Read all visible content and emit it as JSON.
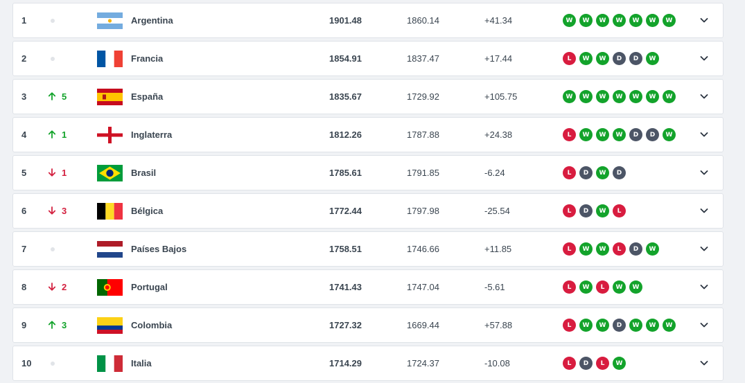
{
  "colors": {
    "win": "#13a32b",
    "loss": "#d81c3f",
    "draw": "#4c5566",
    "up": "#13a32b",
    "down": "#d3203f"
  },
  "rows": [
    {
      "rank": "1",
      "movement": {
        "dir": "none",
        "value": ""
      },
      "flag": "argentina-flag-icon",
      "country": "Argentina",
      "total_points": "1901.48",
      "previous_points": "1860.14",
      "difference": "+41.34",
      "form": [
        "W",
        "W",
        "W",
        "W",
        "W",
        "W",
        "W"
      ]
    },
    {
      "rank": "2",
      "movement": {
        "dir": "none",
        "value": ""
      },
      "flag": "france-flag-icon",
      "country": "Francia",
      "total_points": "1854.91",
      "previous_points": "1837.47",
      "difference": "+17.44",
      "form": [
        "L",
        "W",
        "W",
        "D",
        "D",
        "W"
      ]
    },
    {
      "rank": "3",
      "movement": {
        "dir": "up",
        "value": "5"
      },
      "flag": "spain-flag-icon",
      "country": "España",
      "total_points": "1835.67",
      "previous_points": "1729.92",
      "difference": "+105.75",
      "form": [
        "W",
        "W",
        "W",
        "W",
        "W",
        "W",
        "W"
      ]
    },
    {
      "rank": "4",
      "movement": {
        "dir": "up",
        "value": "1"
      },
      "flag": "england-flag-icon",
      "country": "Inglaterra",
      "total_points": "1812.26",
      "previous_points": "1787.88",
      "difference": "+24.38",
      "form": [
        "L",
        "W",
        "W",
        "W",
        "D",
        "D",
        "W"
      ]
    },
    {
      "rank": "5",
      "movement": {
        "dir": "down",
        "value": "1"
      },
      "flag": "brazil-flag-icon",
      "country": "Brasil",
      "total_points": "1785.61",
      "previous_points": "1791.85",
      "difference": "-6.24",
      "form": [
        "L",
        "D",
        "W",
        "D"
      ]
    },
    {
      "rank": "6",
      "movement": {
        "dir": "down",
        "value": "3"
      },
      "flag": "belgium-flag-icon",
      "country": "Bélgica",
      "total_points": "1772.44",
      "previous_points": "1797.98",
      "difference": "-25.54",
      "form": [
        "L",
        "D",
        "W",
        "L"
      ]
    },
    {
      "rank": "7",
      "movement": {
        "dir": "none",
        "value": ""
      },
      "flag": "netherlands-flag-icon",
      "country": "Países Bajos",
      "total_points": "1758.51",
      "previous_points": "1746.66",
      "difference": "+11.85",
      "form": [
        "L",
        "W",
        "W",
        "L",
        "D",
        "W"
      ]
    },
    {
      "rank": "8",
      "movement": {
        "dir": "down",
        "value": "2"
      },
      "flag": "portugal-flag-icon",
      "country": "Portugal",
      "total_points": "1741.43",
      "previous_points": "1747.04",
      "difference": "-5.61",
      "form": [
        "L",
        "W",
        "L",
        "W",
        "W"
      ]
    },
    {
      "rank": "9",
      "movement": {
        "dir": "up",
        "value": "3"
      },
      "flag": "colombia-flag-icon",
      "country": "Colombia",
      "total_points": "1727.32",
      "previous_points": "1669.44",
      "difference": "+57.88",
      "form": [
        "L",
        "W",
        "W",
        "D",
        "W",
        "W",
        "W"
      ]
    },
    {
      "rank": "10",
      "movement": {
        "dir": "none",
        "value": ""
      },
      "flag": "italy-flag-icon",
      "country": "Italia",
      "total_points": "1714.29",
      "previous_points": "1724.37",
      "difference": "-10.08",
      "form": [
        "L",
        "D",
        "L",
        "W"
      ]
    }
  ]
}
